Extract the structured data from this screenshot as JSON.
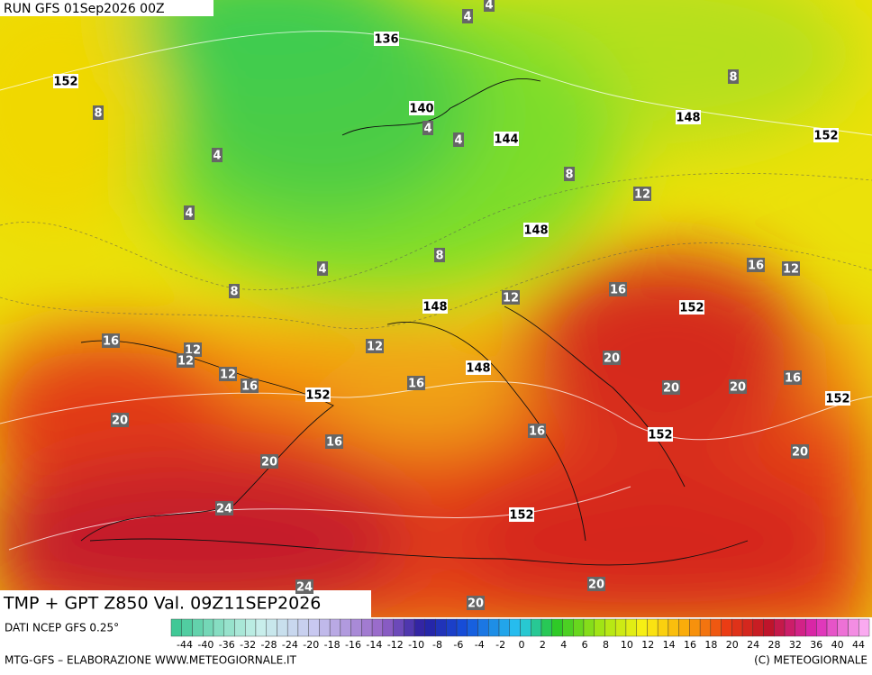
{
  "header": {
    "run": "RUN GFS 01Sep2026 00Z"
  },
  "map": {
    "labels": [
      4,
      4,
      136,
      152,
      8,
      8,
      140,
      4,
      4,
      144,
      148,
      152,
      4,
      8,
      12,
      4,
      148,
      8,
      4,
      16,
      12,
      8,
      16,
      12,
      148,
      152,
      16,
      12,
      12,
      12,
      20,
      148,
      12,
      16,
      16,
      20,
      20,
      16,
      152,
      152,
      20,
      16,
      152,
      16,
      20,
      20,
      24,
      152,
      20,
      24,
      20
    ]
  },
  "footer": {
    "product": "TMP + GPT Z850 Val. 09Z11SEP2026",
    "source": "DATI NCEP GFS 0.25°",
    "scale": [
      -44,
      -40,
      -36,
      -32,
      -28,
      -24,
      -20,
      -18,
      -16,
      -14,
      -12,
      -10,
      -8,
      -6,
      -4,
      -2,
      0,
      2,
      4,
      6,
      8,
      10,
      12,
      14,
      16,
      18,
      20,
      24,
      28,
      32,
      36,
      40,
      44
    ],
    "credit_left": "MTG-GFS – ELABORAZIONE WWW.METEOGIORNALE.IT",
    "credit_right": "(C) METEOGIORNALE"
  }
}
